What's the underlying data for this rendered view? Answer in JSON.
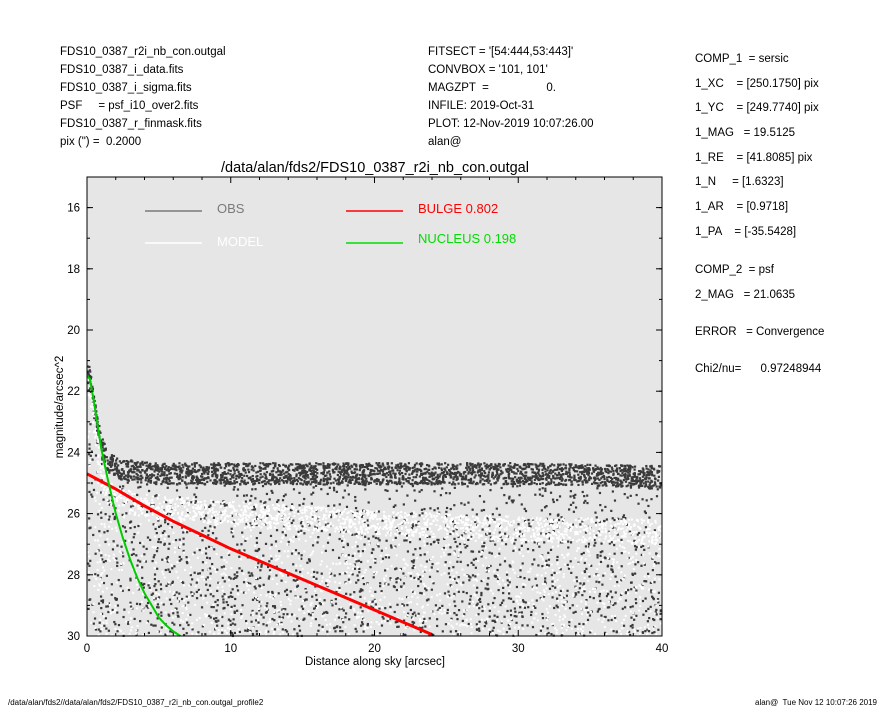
{
  "header_left": [
    "FDS10_0387_r2i_nb_con.outgal",
    "FDS10_0387_i_data.fits",
    "FDS10_0387_i_sigma.fits",
    "PSF     = psf_i10_over2.fits",
    "FDS10_0387_r_finmask.fits",
    "pix (\") =  0.2000"
  ],
  "header_mid": [
    "FITSECT = '[54:444,53:443]'",
    "CONVBOX = '101, 101'",
    "MAGZPT  =                  0.",
    "INFILE: 2019-Oct-31",
    "PLOT: 12-Nov-2019 10:07:26.00",
    "alan@"
  ],
  "params": [
    "COMP_1  = sersic",
    "1_XC    = [250.1750] pix",
    "1_YC    = [249.7740] pix",
    "1_MAG   = 19.5125",
    "1_RE    = [41.8085] pix",
    "1_N     = [1.6323]",
    "1_AR    = [0.9718]",
    "1_PA    = [-35.5428]",
    "",
    "COMP_2  = psf",
    "2_MAG   = 21.0635",
    "",
    "ERROR   = Convergence",
    "",
    "Chi2/nu=      0.97248944"
  ],
  "footer_left": "/data/alan/fds2//data/alan/fds2/FDS10_0387_r2i_nb_con.outgal_profile2",
  "footer_right": "alan@  Tue Nov 12 10:07:26 2019",
  "chart_data": {
    "type": "scatter",
    "title": "/data/alan/fds2/FDS10_0387_r2i_nb_con.outgal",
    "xlabel": "Distance along sky [arcsec]",
    "ylabel": "magnitude/arcsec^2",
    "xlim": [
      0,
      40
    ],
    "ylim": [
      30,
      15
    ],
    "y_inverted": true,
    "xticks": [
      0,
      10,
      20,
      30,
      40
    ],
    "yticks": [
      16,
      18,
      20,
      22,
      24,
      26,
      28,
      30
    ],
    "background": "#e6e6e6",
    "legend": [
      {
        "label": "OBS",
        "color": "#7a7a7a"
      },
      {
        "label": "MODEL",
        "color": "#ffffff"
      },
      {
        "label": "BULGE  0.802",
        "color": "#ff0000"
      },
      {
        "label": "NUCLEUS  0.198",
        "color": "#00dd00"
      }
    ],
    "series": [
      {
        "name": "OBS",
        "kind": "points",
        "color": "#3a3a3a",
        "upper_envelope": {
          "x": [
            0.2,
            0.5,
            1.0,
            1.5,
            2.0,
            3.0,
            5.0,
            10,
            20,
            30,
            40
          ],
          "y": [
            21.5,
            22.5,
            23.8,
            24.3,
            24.5,
            24.6,
            24.7,
            24.7,
            24.7,
            24.7,
            24.8
          ]
        },
        "lower_limit": 30
      },
      {
        "name": "MODEL",
        "kind": "points",
        "color": "#ffffff",
        "upper_envelope": {
          "x": [
            0.2,
            1,
            2,
            5,
            10,
            20,
            30,
            40
          ],
          "y": [
            22.0,
            24.8,
            25.5,
            25.8,
            26.0,
            26.3,
            26.5,
            26.6
          ]
        },
        "lower_limit": 30
      },
      {
        "name": "BULGE  0.802",
        "kind": "line",
        "color": "#ff0000",
        "x": [
          0.0,
          1,
          2,
          4,
          6,
          8,
          10,
          12,
          14,
          16,
          18,
          20,
          22,
          24
        ],
        "y": [
          24.7,
          24.95,
          25.2,
          25.75,
          26.25,
          26.7,
          27.15,
          27.55,
          27.95,
          28.35,
          28.75,
          29.15,
          29.55,
          29.95
        ]
      },
      {
        "name": "NUCLEUS  0.198",
        "kind": "line",
        "color": "#00cc00",
        "x": [
          0.0,
          0.2,
          0.5,
          1.0,
          1.5,
          2.0,
          2.5,
          3.0,
          3.5,
          4.0,
          4.5,
          5.0,
          5.5,
          6.0,
          6.5
        ],
        "y": [
          21.5,
          21.6,
          22.4,
          23.9,
          25.0,
          26.0,
          26.8,
          27.5,
          28.1,
          28.6,
          29.0,
          29.4,
          29.65,
          29.85,
          30.0
        ]
      }
    ]
  }
}
